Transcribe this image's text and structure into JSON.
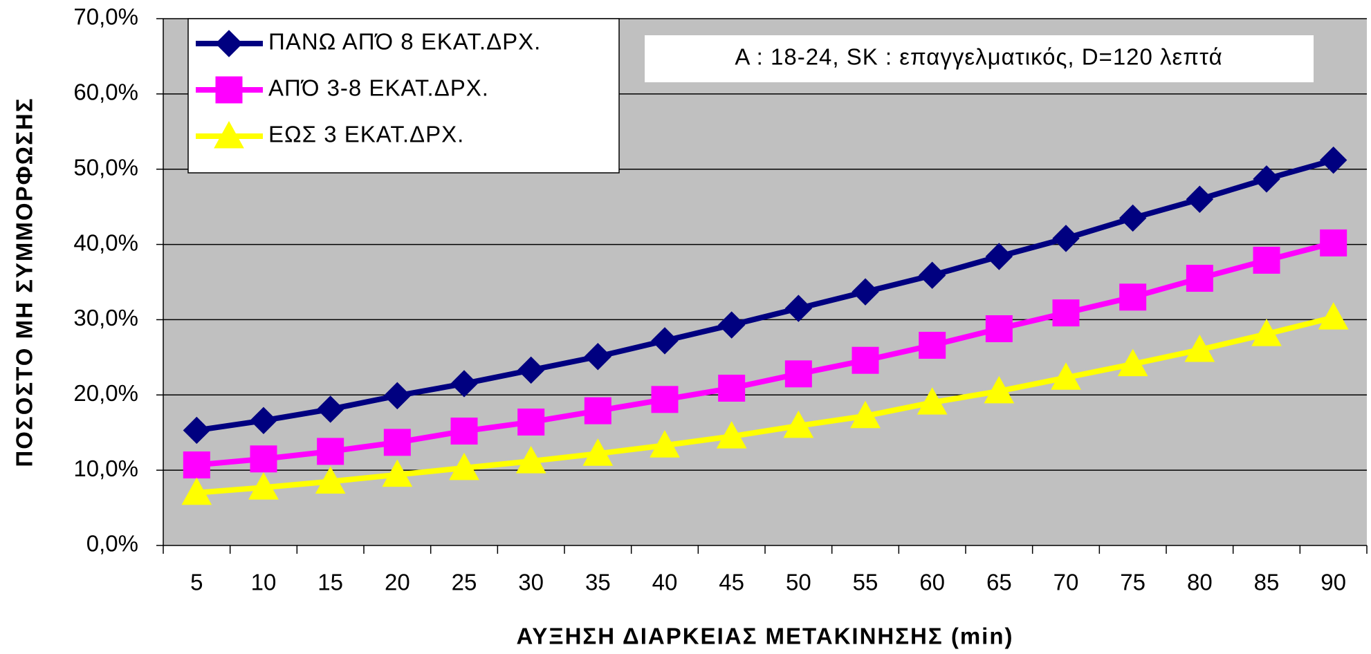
{
  "chart_data": {
    "type": "line",
    "xlabel": "ΑΥΞΗΣΗ ΔΙΑΡΚΕΙΑΣ ΜΕΤΑΚΙΝΗΣΗΣ (min)",
    "ylabel": "ΠΟΣΟΣΤΟ ΜΗ ΣΥΜΜΟΡΦΩΣΗΣ",
    "annotation": "A : 18-24, SK : επαγγελματικός, D=120 λεπτά",
    "categories": [
      "5",
      "10",
      "15",
      "20",
      "25",
      "30",
      "35",
      "40",
      "45",
      "50",
      "55",
      "60",
      "65",
      "70",
      "75",
      "80",
      "85",
      "90"
    ],
    "series": [
      {
        "name": "ΠΑΝΩ ΑΠΌ 8 ΕΚΑΤ.ΔΡΧ.",
        "color": "#000080",
        "marker": "diamond",
        "values": [
          15.3,
          16.6,
          18.1,
          19.9,
          21.5,
          23.3,
          25.1,
          27.2,
          29.3,
          31.5,
          33.7,
          35.9,
          38.4,
          40.8,
          43.5,
          46.0,
          48.7,
          51.2
        ]
      },
      {
        "name": "ΑΠΌ 3-8 ΕΚΑΤ.ΔΡΧ.",
        "color": "#ff00ff",
        "marker": "square",
        "values": [
          10.7,
          11.5,
          12.5,
          13.7,
          15.2,
          16.4,
          17.9,
          19.4,
          20.9,
          22.8,
          24.6,
          26.6,
          28.8,
          30.9,
          33.0,
          35.5,
          37.9,
          40.2
        ]
      },
      {
        "name": "ΕΩΣ 3 ΕΚΑΤ.ΔΡΧ.",
        "color": "#ffff00",
        "marker": "triangle",
        "values": [
          7.0,
          7.7,
          8.5,
          9.4,
          10.3,
          11.2,
          12.2,
          13.3,
          14.5,
          15.9,
          17.2,
          19.0,
          20.5,
          22.3,
          24.1,
          26.0,
          28.1,
          30.3
        ]
      }
    ],
    "ylim": [
      0,
      70
    ],
    "yticks": [
      {
        "value": 0,
        "label": "0,0%"
      },
      {
        "value": 10,
        "label": "10,0%"
      },
      {
        "value": 20,
        "label": "20,0%"
      },
      {
        "value": 30,
        "label": "30,0%"
      },
      {
        "value": 40,
        "label": "40,0%"
      },
      {
        "value": 50,
        "label": "50,0%"
      },
      {
        "value": 60,
        "label": "60,0%"
      },
      {
        "value": 70,
        "label": "70,0%"
      }
    ],
    "grid": true,
    "legend": "upper left",
    "background": "#c0c0c0"
  }
}
